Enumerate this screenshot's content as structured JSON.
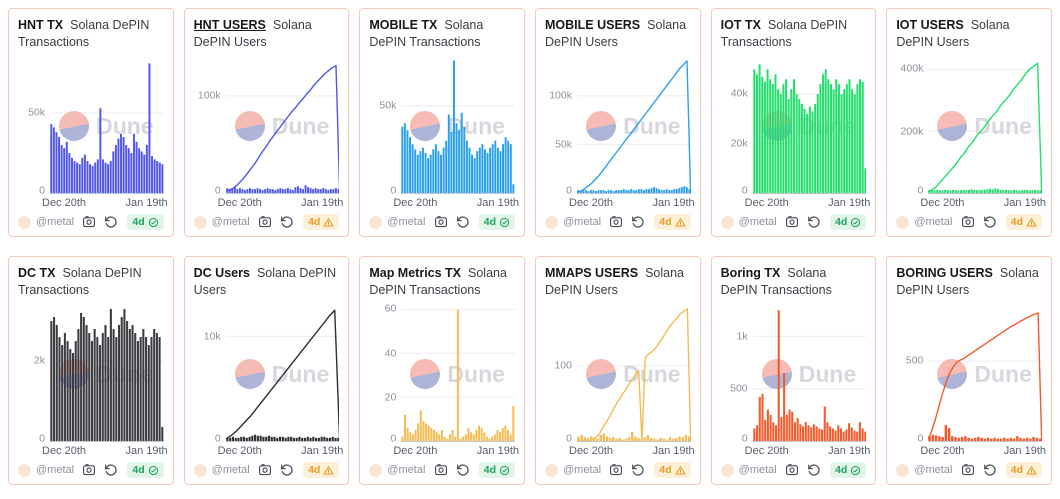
{
  "watermark": {
    "brand": "Dune"
  },
  "cards_common": {
    "author": "@metalight",
    "age_label": "4d",
    "x_ticks": [
      "Dec 20th",
      "Jan 19th"
    ]
  },
  "chart_data": [
    {
      "id": "hnt-tx",
      "title": "HNT TX",
      "subtitle": "Solana DePIN Transactions",
      "underlined": false,
      "type": "bar",
      "color": "#5156e8",
      "status": "ok",
      "ymax": 85000,
      "y_ticks": [
        {
          "v": 0,
          "label": "0"
        },
        {
          "v": 50000,
          "label": "50k"
        }
      ],
      "values": [
        43000,
        41000,
        38000,
        35000,
        30000,
        28000,
        32000,
        25000,
        22000,
        20000,
        19000,
        18000,
        22000,
        24000,
        20000,
        18000,
        17000,
        19000,
        21000,
        53000,
        21000,
        19000,
        18000,
        20000,
        26000,
        30000,
        34000,
        37000,
        35000,
        30000,
        28000,
        25000,
        37000,
        32000,
        28000,
        26000,
        24000,
        30000,
        81000,
        23000,
        21000,
        20000,
        19000,
        18000
      ]
    },
    {
      "id": "hnt-users",
      "title": "HNT USERS",
      "subtitle": "Solana DePIN Users",
      "underlined": true,
      "type": "line",
      "color": "#5156e8",
      "status": "warning",
      "ymax": 140000,
      "y_ticks": [
        {
          "v": 0,
          "label": "0"
        },
        {
          "v": 100000,
          "label": "100k"
        }
      ],
      "line": [
        2000,
        3000,
        5000,
        8000,
        12000,
        16000,
        21000,
        26000,
        31000,
        37000,
        43000,
        48000,
        54000,
        59000,
        64000,
        69000,
        74000,
        79000,
        84000,
        88000,
        93000,
        97000,
        102000,
        106000,
        111000,
        115000,
        119000,
        123000,
        126000,
        129000,
        131000,
        0
      ],
      "bars": [
        5000,
        4000,
        5000,
        6000,
        4000,
        5000,
        4000,
        3000,
        4000,
        5000,
        4000,
        4000,
        5000,
        4000,
        3000,
        4000,
        5000,
        4000,
        4000,
        3000,
        4000,
        5000,
        4000,
        4000,
        5000,
        4000,
        3000,
        6000,
        7000,
        5000,
        4000,
        8000,
        6000,
        5000,
        4000,
        5000,
        4000,
        4000,
        5000,
        4000,
        3000,
        4000,
        4000,
        5000,
        4000
      ]
    },
    {
      "id": "mobile-tx",
      "title": "MOBILE TX",
      "subtitle": "Solana DePIN Transactions",
      "underlined": false,
      "type": "bar",
      "color": "#2ba0ea",
      "status": "ok",
      "ymax": 78000,
      "y_ticks": [
        {
          "v": 0,
          "label": "0"
        },
        {
          "v": 50000,
          "label": "50k"
        }
      ],
      "values": [
        38000,
        40000,
        36000,
        32000,
        28000,
        25000,
        22000,
        24000,
        26000,
        23000,
        20000,
        22000,
        25000,
        28000,
        24000,
        22000,
        26000,
        30000,
        45000,
        35000,
        76000,
        40000,
        36000,
        46000,
        38000,
        30000,
        26000,
        22000,
        20000,
        24000,
        26000,
        28000,
        25000,
        23000,
        26000,
        28000,
        30000,
        26000,
        24000,
        28000,
        32000,
        30000,
        28000,
        5000
      ]
    },
    {
      "id": "mobile-users",
      "title": "MOBILE USERS",
      "subtitle": "Solana DePIN Users",
      "underlined": false,
      "type": "line",
      "color": "#2ba0ea",
      "status": "warning",
      "ymax": 140000,
      "y_ticks": [
        {
          "v": 0,
          "label": "0"
        },
        {
          "v": 50000,
          "label": "50k"
        },
        {
          "v": 100000,
          "label": "100k"
        }
      ],
      "line": [
        1000,
        2000,
        4000,
        7000,
        10000,
        14000,
        18000,
        23000,
        28000,
        33000,
        38000,
        43000,
        48000,
        53000,
        58000,
        63000,
        68000,
        73000,
        78000,
        83000,
        88000,
        93000,
        98000,
        103000,
        108000,
        113000,
        118000,
        123000,
        128000,
        132000,
        136000,
        0
      ],
      "bars": [
        3000,
        2000,
        3000,
        3000,
        2000,
        3000,
        3000,
        2000,
        3000,
        3000,
        3000,
        2000,
        3000,
        3000,
        2000,
        3000,
        3000,
        3000,
        4000,
        3000,
        3000,
        4000,
        3000,
        3000,
        4000,
        4000,
        3000,
        4000,
        4000,
        5000,
        6000,
        5000,
        4000,
        3000,
        3000,
        4000,
        3000,
        3000,
        4000,
        4000,
        5000,
        6000,
        7000,
        6000,
        4000
      ]
    },
    {
      "id": "iot-tx",
      "title": "IOT TX",
      "subtitle": "Solana DePIN Transactions",
      "underlined": false,
      "type": "bar",
      "color": "#22df6c",
      "status": "ok",
      "ymax": 55000,
      "y_ticks": [
        {
          "v": 0,
          "label": "0"
        },
        {
          "v": 20000,
          "label": "20k"
        },
        {
          "v": 40000,
          "label": "40k"
        }
      ],
      "values": [
        50000,
        48000,
        52000,
        47000,
        45000,
        50000,
        46000,
        44000,
        48000,
        42000,
        40000,
        44000,
        46000,
        38000,
        42000,
        46000,
        40000,
        38000,
        36000,
        34000,
        32000,
        35000,
        33000,
        36000,
        40000,
        44000,
        48000,
        50000,
        46000,
        44000,
        42000,
        46000,
        44000,
        40000,
        42000,
        44000,
        46000,
        42000,
        40000,
        44000,
        46000,
        45000,
        10000
      ]
    },
    {
      "id": "iot-users",
      "title": "IOT USERS",
      "subtitle": "Solana DePIN Users",
      "underlined": false,
      "type": "line",
      "color": "#22df6c",
      "status": "warning",
      "ymax": 440000,
      "y_ticks": [
        {
          "v": 0,
          "label": "0"
        },
        {
          "v": 200000,
          "label": "200k"
        },
        {
          "v": 400000,
          "label": "400k"
        }
      ],
      "line": [
        5000,
        10000,
        20000,
        35000,
        50000,
        65000,
        80000,
        95000,
        115000,
        130000,
        150000,
        165000,
        185000,
        200000,
        215000,
        235000,
        250000,
        265000,
        285000,
        300000,
        315000,
        335000,
        350000,
        365000,
        385000,
        400000,
        410000,
        420000,
        0
      ],
      "bars": [
        10000,
        8000,
        9000,
        10000,
        8000,
        9000,
        10000,
        9000,
        8000,
        10000,
        9000,
        8000,
        9000,
        10000,
        9000,
        10000,
        12000,
        10000,
        9000,
        10000,
        9000,
        10000,
        12000,
        14000,
        12000,
        15000,
        13000,
        10000,
        9000,
        10000,
        9000,
        8000,
        10000,
        9000,
        8000,
        9000,
        10000,
        9000,
        8000,
        9000,
        10000,
        9000,
        8000
      ]
    },
    {
      "id": "dc-tx",
      "title": "DC TX",
      "subtitle": "Solana DePIN Transactions",
      "underlined": false,
      "type": "bar",
      "color": "#3b3b40",
      "status": "ok",
      "ymax": 3400,
      "y_ticks": [
        {
          "v": 0,
          "label": "0"
        },
        {
          "v": 2000,
          "label": "2k"
        }
      ],
      "values": [
        3000,
        3100,
        2900,
        2600,
        2400,
        2700,
        2500,
        2300,
        2200,
        2500,
        2800,
        3200,
        3100,
        2900,
        2700,
        2500,
        2800,
        2600,
        2400,
        2700,
        2900,
        2600,
        3300,
        2800,
        2600,
        2900,
        3100,
        3300,
        3000,
        2800,
        2900,
        2700,
        2500,
        2600,
        2800,
        2600,
        2400,
        2600,
        2800,
        2700,
        2600,
        350
      ]
    },
    {
      "id": "dc-users",
      "title": "DC Users",
      "subtitle": "Solana DePIN Users",
      "underlined": false,
      "type": "line",
      "color": "#2e2e33",
      "status": "warning",
      "ymax": 13000,
      "y_ticks": [
        {
          "v": 0,
          "label": "0"
        },
        {
          "v": 10000,
          "label": "10k"
        }
      ],
      "line": [
        200,
        500,
        900,
        1400,
        1900,
        2400,
        3000,
        3600,
        4200,
        4800,
        5400,
        6000,
        6600,
        7200,
        7800,
        8400,
        9000,
        9600,
        10200,
        10800,
        11400,
        12000,
        12500,
        0
      ],
      "bars": [
        300,
        300,
        400,
        300,
        300,
        400,
        400,
        300,
        400,
        500,
        600,
        500,
        500,
        400,
        400,
        500,
        400,
        400,
        300,
        400,
        400,
        300,
        400,
        400,
        300,
        300,
        400,
        300,
        300,
        400,
        300,
        400,
        300,
        300,
        400,
        400,
        300,
        300,
        400,
        300,
        300
      ]
    },
    {
      "id": "map-metrics-tx",
      "title": "Map Metrics TX",
      "subtitle": "Solana DePIN Transactions",
      "underlined": false,
      "type": "bar",
      "color": "#f2bd55",
      "status": "ok",
      "ymax": 62,
      "y_ticks": [
        {
          "v": 0,
          "label": "0"
        },
        {
          "v": 20,
          "label": "20"
        },
        {
          "v": 40,
          "label": "40"
        },
        {
          "v": 60,
          "label": "60"
        }
      ],
      "values": [
        2,
        12,
        6,
        4,
        3,
        5,
        8,
        14,
        9,
        8,
        7,
        6,
        5,
        4,
        3,
        5,
        2,
        1,
        3,
        5,
        2,
        60,
        1,
        2,
        3,
        6,
        4,
        3,
        5,
        7,
        6,
        4,
        2,
        1,
        2,
        3,
        5,
        4,
        6,
        7,
        5,
        3,
        16
      ]
    },
    {
      "id": "mmaps-users",
      "title": "MMAPS USERS",
      "subtitle": "Solana DePIN Users",
      "underlined": false,
      "type": "line",
      "color": "#f2bd55",
      "status": "warning",
      "ymax": 180,
      "y_ticks": [
        {
          "v": 0,
          "label": "0"
        },
        {
          "v": 100,
          "label": "100"
        }
      ],
      "line": [
        0,
        0,
        0,
        0,
        0,
        2,
        5,
        10,
        18,
        25,
        32,
        40,
        48,
        55,
        62,
        68,
        75,
        82,
        88,
        93,
        0,
        110,
        115,
        118,
        122,
        128,
        134,
        141,
        148,
        154,
        159,
        164,
        169,
        172,
        175,
        0
      ],
      "bars": [
        6,
        8,
        5,
        4,
        6,
        5,
        3,
        8,
        10,
        6,
        4,
        5,
        3,
        4,
        2,
        3,
        5,
        12,
        6,
        4,
        3,
        5,
        8,
        4,
        3,
        2,
        4,
        3,
        2,
        5,
        3,
        4,
        6,
        5,
        8,
        6
      ]
    },
    {
      "id": "boring-tx",
      "title": "Boring TX",
      "subtitle": "Solana DePIN Transactions",
      "underlined": false,
      "type": "bar",
      "color": "#f25a2b",
      "status": "ok",
      "ymax": 1300,
      "y_ticks": [
        {
          "v": 0,
          "label": "0"
        },
        {
          "v": 500,
          "label": "500"
        },
        {
          "v": 1000,
          "label": "1k"
        }
      ],
      "values": [
        120,
        150,
        420,
        450,
        200,
        300,
        250,
        180,
        150,
        1250,
        230,
        650,
        250,
        300,
        280,
        180,
        220,
        160,
        140,
        180,
        150,
        130,
        160,
        140,
        120,
        110,
        330,
        180,
        140,
        120,
        100,
        150,
        120,
        90,
        110,
        170,
        130,
        100,
        90,
        180,
        120,
        90
      ]
    },
    {
      "id": "boring-users",
      "title": "BORING USERS",
      "subtitle": "Solana DePIN Users",
      "underlined": false,
      "type": "line",
      "color": "#f25a2b",
      "status": "warning",
      "ymax": 850,
      "y_ticks": [
        {
          "v": 0,
          "label": "0"
        },
        {
          "v": 500,
          "label": "500"
        }
      ],
      "line": [
        10,
        60,
        130,
        210,
        290,
        360,
        420,
        460,
        490,
        505,
        515,
        530,
        545,
        560,
        575,
        590,
        605,
        620,
        635,
        650,
        665,
        680,
        695,
        710,
        722,
        735,
        748,
        760,
        772,
        783,
        793,
        800,
        0
      ],
      "bars": [
        30,
        40,
        35,
        30,
        25,
        100,
        80,
        30,
        25,
        20,
        25,
        30,
        20,
        15,
        20,
        25,
        20,
        15,
        20,
        15,
        20,
        15,
        15,
        20,
        15,
        20,
        15,
        30,
        20,
        15,
        20,
        15,
        25,
        20,
        15
      ]
    }
  ]
}
